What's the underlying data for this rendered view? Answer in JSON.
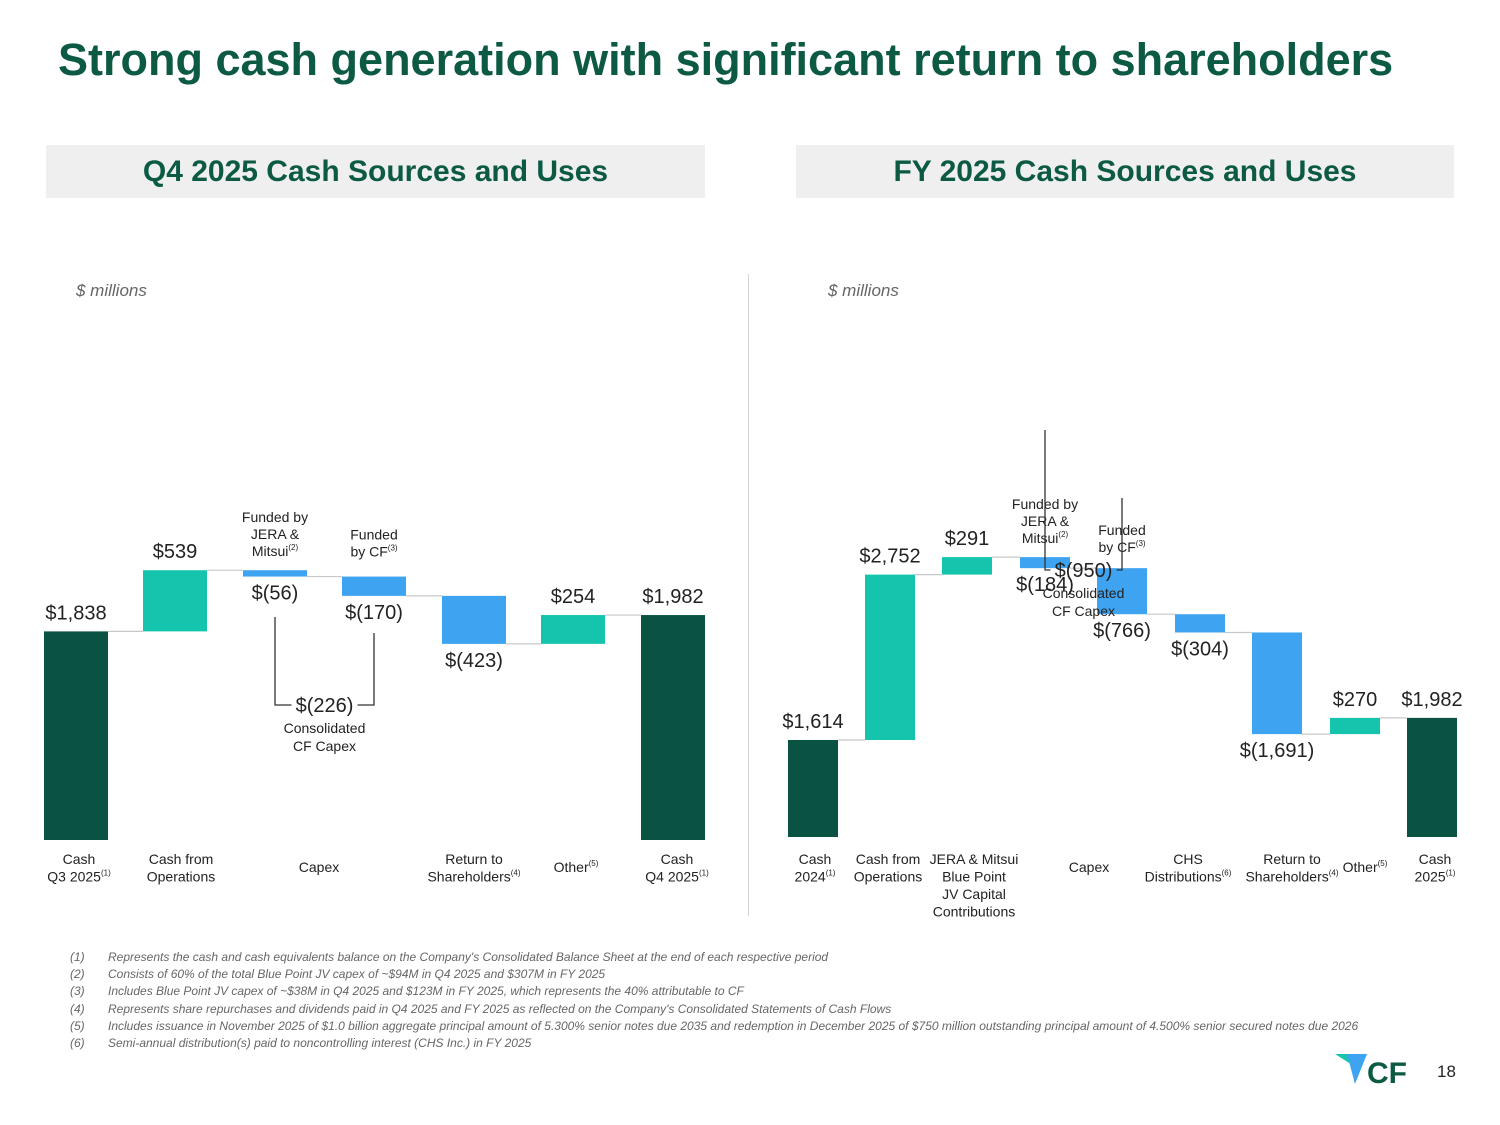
{
  "title": "Strong cash generation with significant return to shareholders",
  "colors": {
    "title": "#0d5a44",
    "cash": "#0a5343",
    "increase": "#14c4ad",
    "decrease": "#3ea3f0",
    "connector": "#c8c8c8",
    "bracket": "#333333"
  },
  "chart_data": [
    {
      "type": "bar",
      "title": "Q4 2025 Cash Sources and Uses",
      "unit_label": "$ millions",
      "categories": [
        "Cash Q3 2025(1)",
        "Cash from Operations",
        "Funded by JERA & Mitsui(2)",
        "Funded by CF(3)",
        "Return to Shareholders(4)",
        "Other(5)",
        "Cash Q4 2025(1)"
      ],
      "category_labels": [
        [
          {
            "t": "Cash"
          },
          {
            "t": "Q3 2025",
            "sup": "(1)"
          }
        ],
        [
          {
            "t": "Cash from"
          },
          {
            "t": "Operations"
          }
        ],
        [
          {
            "t": "Capex"
          }
        ],
        [
          {
            "t": "Return to"
          },
          {
            "t": "Shareholders",
            "sup": "(4)"
          }
        ],
        [
          {
            "t": "Other",
            "sup": "(5)"
          }
        ],
        [
          {
            "t": "Cash"
          },
          {
            "t": "Q4 2025",
            "sup": "(1)"
          }
        ]
      ],
      "values": [
        1838,
        539,
        -56,
        -170,
        -423,
        254,
        1982
      ],
      "kinds": [
        "total",
        "delta",
        "delta",
        "delta",
        "delta",
        "delta",
        "total"
      ],
      "value_labels": [
        "$1,838",
        "$539",
        "$(56)",
        "$(170)",
        "$(423)",
        "$254",
        "$1,982"
      ],
      "bar_notes": [
        {
          "bar": 2,
          "lines": [
            {
              "t": "Funded by"
            },
            {
              "t": "JERA &"
            },
            {
              "t": "Mitsui",
              "sup": "(2)"
            }
          ]
        },
        {
          "bar": 3,
          "lines": [
            {
              "t": "Funded"
            },
            {
              "t": "by CF",
              "sup": "(3)"
            }
          ]
        }
      ],
      "bracket": {
        "from_bar": 2,
        "to_bar": 3,
        "value_label": "$(226)",
        "caption": [
          "Consolidated",
          "CF Capex"
        ]
      }
    },
    {
      "type": "bar",
      "title": "FY 2025 Cash Sources and Uses",
      "unit_label": "$ millions",
      "categories": [
        "Cash 2024(1)",
        "Cash from Operations",
        "JERA & Mitsui Blue Point JV Capital Contributions",
        "Funded by JERA & Mitsui(2)",
        "Funded by CF(3)",
        "CHS Distributions(6)",
        "Return to Shareholders(4)",
        "Other(5)",
        "Cash 2025(1)"
      ],
      "category_labels": [
        [
          {
            "t": "Cash"
          },
          {
            "t": "2024",
            "sup": "(1)"
          }
        ],
        [
          {
            "t": "Cash from"
          },
          {
            "t": "Operations"
          }
        ],
        [
          {
            "t": "JERA & Mitsui"
          },
          {
            "t": "Blue Point"
          },
          {
            "t": "JV Capital"
          },
          {
            "t": "Contributions"
          }
        ],
        [
          {
            "t": "Capex"
          }
        ],
        [
          {
            "t": "CHS"
          },
          {
            "t": "Distributions",
            "sup": "(6)"
          }
        ],
        [
          {
            "t": "Return to"
          },
          {
            "t": "Shareholders",
            "sup": "(4)"
          }
        ],
        [
          {
            "t": "Other",
            "sup": "(5)"
          }
        ],
        [
          {
            "t": "Cash"
          },
          {
            "t": "2025",
            "sup": "(1)"
          }
        ]
      ],
      "values": [
        1614,
        2752,
        291,
        -184,
        -766,
        -304,
        -1691,
        270,
        1982
      ],
      "kinds": [
        "total",
        "delta",
        "delta",
        "delta",
        "delta",
        "delta",
        "delta",
        "delta",
        "total"
      ],
      "value_labels": [
        "$1,614",
        "$2,752",
        "$291",
        "$(184)",
        "$(766)",
        "$(304)",
        "$(1,691)",
        "$270",
        "$1,982"
      ],
      "bar_notes": [
        {
          "bar": 3,
          "lines": [
            {
              "t": "Funded by"
            },
            {
              "t": "JERA &"
            },
            {
              "t": "Mitsui",
              "sup": "(2)"
            }
          ]
        },
        {
          "bar": 4,
          "lines": [
            {
              "t": "Funded"
            },
            {
              "t": "by CF",
              "sup": "(3)"
            }
          ]
        }
      ],
      "bracket": {
        "from_bar": 3,
        "to_bar": 4,
        "value_label": "$(950)",
        "caption": [
          "Consolidated",
          "CF Capex"
        ]
      }
    }
  ],
  "footnotes": [
    {
      "num": "(1)",
      "text": "Represents the cash and cash equivalents balance on the Company's Consolidated Balance Sheet at the end of each respective period"
    },
    {
      "num": "(2)",
      "text": "Consists of 60% of the total Blue Point JV capex of ~$94M in Q4 2025 and $307M in FY 2025"
    },
    {
      "num": "(3)",
      "text": "Includes Blue Point JV capex of ~$38M in Q4 2025 and $123M in FY 2025, which represents the 40% attributable to CF"
    },
    {
      "num": "(4)",
      "text": "Represents share repurchases and dividends paid in Q4 2025 and FY 2025 as reflected on the Company's Consolidated Statements of Cash Flows"
    },
    {
      "num": "(5)",
      "text": "Includes issuance in November 2025 of $1.0 billion aggregate principal amount of 5.300% senior notes due 2035 and redemption in December 2025 of $750 million outstanding principal amount of 4.500% senior secured notes due 2026"
    },
    {
      "num": "(6)",
      "text": "Semi-annual distribution(s) paid to noncontrolling interest (CHS Inc.) in FY 2025"
    }
  ],
  "logo_text": "CF",
  "page_number": "18"
}
